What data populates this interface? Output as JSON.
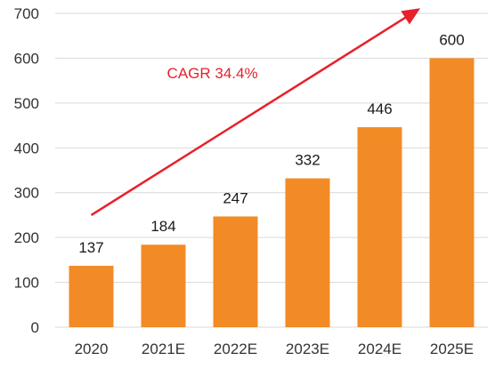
{
  "chart_data": {
    "type": "bar",
    "categories": [
      "2020",
      "2021E",
      "2022E",
      "2023E",
      "2024E",
      "2025E"
    ],
    "values": [
      137,
      184,
      247,
      332,
      446,
      600
    ],
    "title": "",
    "xlabel": "",
    "ylabel": "",
    "ylim": [
      0,
      700
    ],
    "yticks": [
      0,
      100,
      200,
      300,
      400,
      500,
      600,
      700
    ],
    "grid": true,
    "legend": "none",
    "bar_color": "#F28B26",
    "annotation": {
      "text": "CAGR 34.4%",
      "color": "#E8202A"
    }
  }
}
